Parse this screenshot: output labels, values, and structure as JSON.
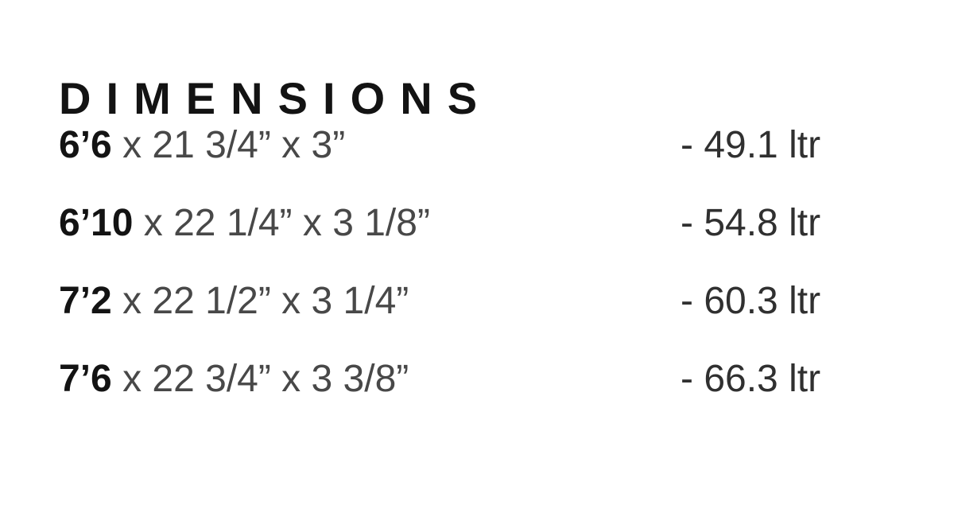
{
  "dimensions_section": {
    "title": "DIMENSIONS",
    "rows": [
      {
        "length": "6’6",
        "width_thickness": " x 21 3/4” x 3”",
        "volume": "- 49.1 ltr"
      },
      {
        "length": "6’10",
        "width_thickness": " x 22 1/4” x 3 1/8”",
        "volume": "- 54.8 ltr"
      },
      {
        "length": "7’2",
        "width_thickness": " x 22 1/2” x 3 1/4”",
        "volume": "- 60.3 ltr"
      },
      {
        "length": "7’6",
        "width_thickness": " x 22 3/4” x 3 3/8”",
        "volume": "- 66.3 ltr"
      }
    ]
  },
  "colors": {
    "background": "#ffffff",
    "title_text": "#131313",
    "length_text": "#131313",
    "dims_text": "#484848",
    "volume_text": "#303030"
  }
}
